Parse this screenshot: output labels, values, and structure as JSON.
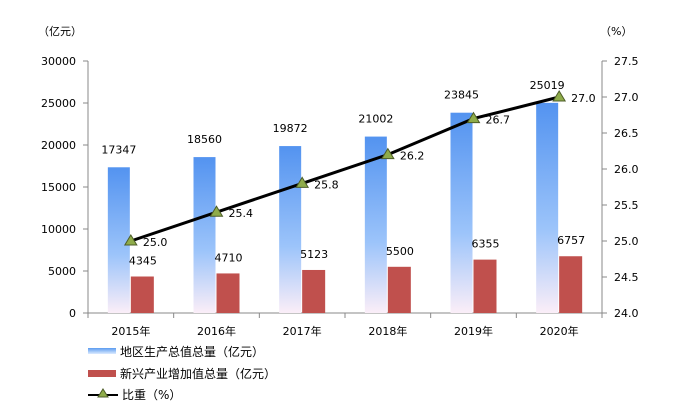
{
  "chart_data": {
    "type": "bar+line",
    "categories": [
      "2015年",
      "2016年",
      "2017年",
      "2018年",
      "2019年",
      "2020年"
    ],
    "left_unit": "（亿元）",
    "right_unit": "（%）",
    "ylim": [
      0,
      30000
    ],
    "yticks": [
      0,
      5000,
      10000,
      15000,
      20000,
      25000,
      30000
    ],
    "y2lim": [
      24.0,
      27.5
    ],
    "y2ticks": [
      "24.0",
      "24.5",
      "25.0",
      "25.5",
      "26.0",
      "26.5",
      "27.0",
      "27.5"
    ],
    "grid": false,
    "legend_position": "bottom-left",
    "series": [
      {
        "name": "地区生产总值总量（亿元）",
        "type": "bar",
        "color": "#5b9bf0",
        "values": [
          17347,
          18560,
          19872,
          21002,
          23845,
          25019
        ]
      },
      {
        "name": "新兴产业增加值总量（亿元）",
        "type": "bar",
        "color": "#c0504d",
        "values": [
          4345,
          4710,
          5123,
          5500,
          6355,
          6757
        ]
      },
      {
        "name": "比重（%）",
        "type": "line",
        "axis": "right",
        "color": "#000000",
        "marker_color": "#8fac4a",
        "values": [
          "25.0",
          "25.4",
          "25.8",
          "26.2",
          "26.7",
          "27.0"
        ]
      }
    ]
  }
}
